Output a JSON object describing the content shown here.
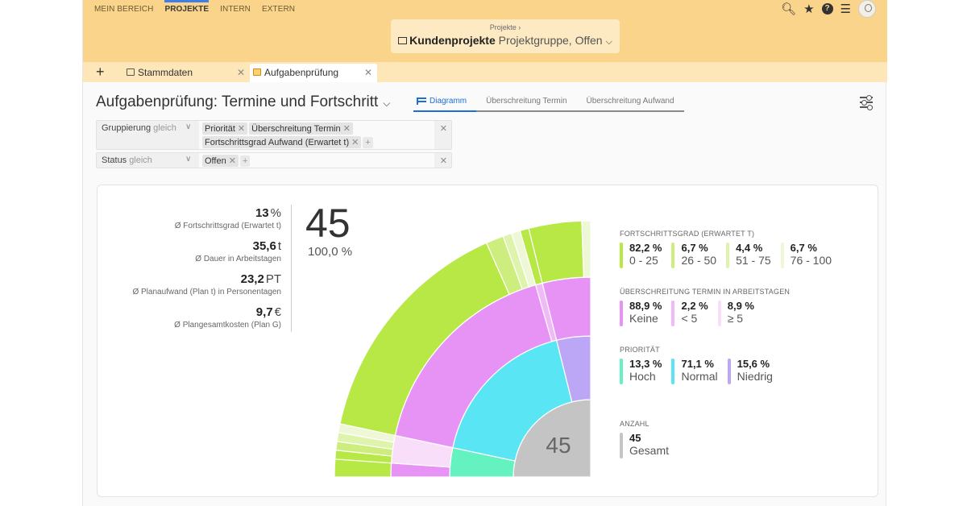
{
  "nav": {
    "items": [
      "MEIN BEREICH",
      "PROJEKTE",
      "INTERN",
      "EXTERN"
    ],
    "active_index": 1
  },
  "breadcrumb": {
    "parent": "Projekte",
    "separator": "›",
    "title": "Kundenprojekte",
    "subtitle": "Projektgruppe, Offen"
  },
  "tabs": [
    {
      "label": "Stammdaten"
    },
    {
      "label": "Aufgabenprüfung"
    }
  ],
  "page": {
    "title": "Aufgabenprüfung: Termine und Fortschritt",
    "view_tabs": [
      "Diagramm",
      "Überschreitung Termin",
      "Überschreitung Aufwand"
    ]
  },
  "filters": [
    {
      "label": "Gruppierung",
      "operator": "gleich",
      "chips": [
        "Priorität",
        "Überschreitung Termin",
        "Fortschrittsgrad Aufwand (Erwartet t)"
      ]
    },
    {
      "label": "Status",
      "operator": "gleich",
      "chips": [
        "Offen"
      ]
    }
  ],
  "kpis": [
    {
      "value": "13",
      "unit": "%",
      "label": "Ø Fortschrittsgrad (Erwartet t)"
    },
    {
      "value": "35,6",
      "unit": "t",
      "label": "Ø Dauer in Arbeitstagen"
    },
    {
      "value": "23,2",
      "unit": "PT",
      "label": "Ø Planaufwand (Plan t) in Personentagen"
    },
    {
      "value": "9,7",
      "unit": "€",
      "label": "Ø Plangesamtkosten (Plan G)"
    }
  ],
  "total": {
    "count": "45",
    "percent": "100,0 %"
  },
  "legend": [
    {
      "title": "FORTSCHRITTSGRAD (ERWARTET T)",
      "items": [
        {
          "pct": "82,2 %",
          "name": "0 - 25",
          "color": "#b8e845"
        },
        {
          "pct": "6,7 %",
          "name": "26 - 50",
          "color": "#cdee7e"
        },
        {
          "pct": "4,4 %",
          "name": "51 - 75",
          "color": "#def4ad"
        },
        {
          "pct": "6,7 %",
          "name": "76 - 100",
          "color": "#eef8d6"
        }
      ]
    },
    {
      "title": "ÜBERSCHREITUNG TERMIN IN ARBEITSTAGEN",
      "items": [
        {
          "pct": "88,9 %",
          "name": "Keine",
          "color": "#e693f5"
        },
        {
          "pct": "2,2 %",
          "name": "< 5",
          "color": "#efbaf7"
        },
        {
          "pct": "8,9 %",
          "name": "≥ 5",
          "color": "#f8def9"
        }
      ]
    },
    {
      "title": "PRIORITÄT",
      "items": [
        {
          "pct": "13,3 %",
          "name": "Hoch",
          "color": "#63f2c0"
        },
        {
          "pct": "71,1 %",
          "name": "Normal",
          "color": "#5ae5f4"
        },
        {
          "pct": "15,6 %",
          "name": "Niedrig",
          "color": "#bca7f6"
        }
      ]
    },
    {
      "title": "ANZAHL",
      "items": [
        {
          "pct": "45",
          "name": "Gesamt",
          "color": "#c4c4c4"
        }
      ]
    }
  ],
  "sunburst": {
    "center_label": "45",
    "center_color": "#c4c4c4",
    "priority": [
      {
        "name": "Hoch",
        "count": 6,
        "color": "#63f2c0"
      },
      {
        "name": "Normal",
        "count": 32,
        "color": "#5ae5f4"
      },
      {
        "name": "Niedrig",
        "count": 7,
        "color": "#bca7f6"
      }
    ],
    "termin_within_priority": [
      {
        "priority": "Hoch",
        "segments": [
          {
            "name": "Keine",
            "count": 2
          },
          {
            "name": "≥ 5",
            "count": 4
          }
        ]
      },
      {
        "priority": "Normal",
        "segments": [
          {
            "name": "Keine",
            "count": 31
          },
          {
            "name": "< 5",
            "count": 1
          }
        ]
      },
      {
        "priority": "Niedrig",
        "segments": [
          {
            "name": "Keine",
            "count": 7
          }
        ]
      }
    ],
    "termin_colors": {
      "Keine": "#e693f5",
      "< 5": "#efbaf7",
      "≥ 5": "#f8def9"
    },
    "fortschritt_within_termin": [
      [
        {
          "name": "0 - 25",
          "count": 2
        }
      ],
      [
        {
          "name": "0 - 25",
          "count": 1
        },
        {
          "name": "26 - 50",
          "count": 1
        },
        {
          "name": "51 - 75",
          "count": 1
        },
        {
          "name": "76 - 100",
          "count": 1
        }
      ],
      [
        {
          "name": "0 - 25",
          "count": 27
        },
        {
          "name": "26 - 50",
          "count": 2
        },
        {
          "name": "51 - 75",
          "count": 1
        },
        {
          "name": "76 - 100",
          "count": 1
        }
      ],
      [
        {
          "name": "0 - 25",
          "count": 1
        }
      ],
      [
        {
          "name": "0 - 25",
          "count": 6
        },
        {
          "name": "76 - 100",
          "count": 1
        }
      ]
    ],
    "fortschritt_colors": {
      "0 - 25": "#b8e845",
      "26 - 50": "#cdee7e",
      "51 - 75": "#def4ad",
      "76 - 100": "#eef8d6"
    }
  }
}
